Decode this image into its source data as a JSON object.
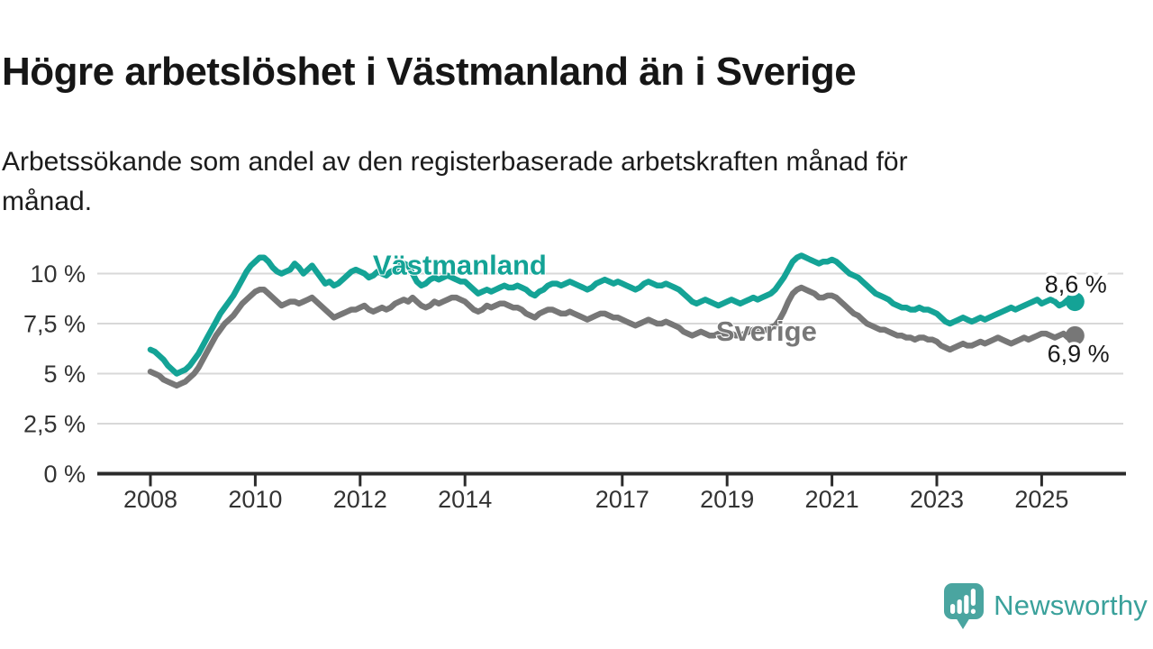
{
  "header": {
    "title": "Högre arbetslöshet i Västmanland än i Sverige",
    "subtitle_line1": "Arbetssökande som andel av den registerbaserade arbetskraften månad för",
    "subtitle_line2": "månad."
  },
  "footer": {
    "brand": "Newsworthy"
  },
  "colors": {
    "vastmanland": "#14a396",
    "sverige": "#777777",
    "grid": "#d8d8d8",
    "axis": "#2b2b2b",
    "logo_teal": "#4aa5a0"
  },
  "chart_data": {
    "type": "line",
    "title": "Högre arbetslöshet i Västmanland än i Sverige",
    "subtitle": "Arbetssökande som andel av den registerbaserade arbetskraften månad för månad.",
    "unit": "%",
    "x_start_year": 2008,
    "x_step_months": 1,
    "xlim": [
      2007.3,
      2026.1
    ],
    "ylim": [
      0,
      11.6
    ],
    "grid": "horizontal",
    "legend_position": "inline-labels",
    "yticks": [
      {
        "value": 0,
        "label": "0 %"
      },
      {
        "value": 2.5,
        "label": "2,5 %"
      },
      {
        "value": 5,
        "label": "5 %"
      },
      {
        "value": 7.5,
        "label": "7,5 %"
      },
      {
        "value": 10,
        "label": "10 %"
      }
    ],
    "xticks": [
      {
        "value": 2008,
        "label": "2008"
      },
      {
        "value": 2010,
        "label": "2010"
      },
      {
        "value": 2012,
        "label": "2012"
      },
      {
        "value": 2014,
        "label": "2014"
      },
      {
        "value": 2017,
        "label": "2017"
      },
      {
        "value": 2019,
        "label": "2019"
      },
      {
        "value": 2021,
        "label": "2021"
      },
      {
        "value": 2023,
        "label": "2023"
      },
      {
        "value": 2025,
        "label": "2025"
      }
    ],
    "series": [
      {
        "name": "Västmanland",
        "color": "#14a396",
        "name_label": {
          "text": "Västmanland",
          "x_year": 2013.9,
          "y_value": 10.4
        },
        "end_label": {
          "text": "8,6 %",
          "x_year": 2025.65,
          "y_value": 9.45
        },
        "end_value": 8.6,
        "values": [
          6.2,
          6.1,
          5.9,
          5.7,
          5.4,
          5.2,
          5.0,
          5.1,
          5.2,
          5.4,
          5.7,
          6.0,
          6.4,
          6.8,
          7.2,
          7.6,
          8.0,
          8.3,
          8.6,
          8.9,
          9.3,
          9.7,
          10.1,
          10.4,
          10.6,
          10.8,
          10.8,
          10.6,
          10.3,
          10.1,
          10.0,
          10.1,
          10.2,
          10.5,
          10.3,
          10.0,
          10.2,
          10.4,
          10.1,
          9.8,
          9.5,
          9.6,
          9.4,
          9.5,
          9.7,
          9.9,
          10.1,
          10.2,
          10.1,
          10.0,
          9.8,
          9.9,
          10.1,
          10.0,
          9.9,
          10.1,
          10.2,
          10.4,
          10.5,
          10.4,
          10.0,
          9.6,
          9.4,
          9.5,
          9.7,
          9.8,
          9.7,
          9.8,
          9.9,
          9.8,
          9.7,
          9.6,
          9.6,
          9.4,
          9.2,
          9.0,
          9.1,
          9.2,
          9.1,
          9.2,
          9.3,
          9.4,
          9.3,
          9.3,
          9.4,
          9.3,
          9.2,
          9.0,
          8.9,
          9.1,
          9.2,
          9.4,
          9.5,
          9.5,
          9.4,
          9.5,
          9.6,
          9.5,
          9.4,
          9.3,
          9.2,
          9.3,
          9.5,
          9.6,
          9.7,
          9.6,
          9.5,
          9.6,
          9.5,
          9.4,
          9.3,
          9.2,
          9.3,
          9.5,
          9.6,
          9.5,
          9.4,
          9.4,
          9.5,
          9.4,
          9.3,
          9.2,
          9.0,
          8.8,
          8.6,
          8.5,
          8.6,
          8.7,
          8.6,
          8.5,
          8.4,
          8.5,
          8.6,
          8.7,
          8.6,
          8.5,
          8.6,
          8.7,
          8.8,
          8.7,
          8.8,
          8.9,
          9.0,
          9.2,
          9.5,
          9.8,
          10.2,
          10.6,
          10.8,
          10.9,
          10.8,
          10.7,
          10.6,
          10.5,
          10.6,
          10.6,
          10.7,
          10.6,
          10.4,
          10.2,
          10.0,
          9.9,
          9.8,
          9.6,
          9.4,
          9.2,
          9.0,
          8.9,
          8.8,
          8.7,
          8.5,
          8.4,
          8.3,
          8.3,
          8.2,
          8.2,
          8.3,
          8.2,
          8.2,
          8.1,
          8.0,
          7.8,
          7.6,
          7.5,
          7.6,
          7.7,
          7.8,
          7.7,
          7.6,
          7.7,
          7.8,
          7.7,
          7.8,
          7.9,
          8.0,
          8.1,
          8.2,
          8.3,
          8.2,
          8.3,
          8.4,
          8.5,
          8.6,
          8.7,
          8.5,
          8.6,
          8.7,
          8.6,
          8.4,
          8.5,
          8.7,
          8.6
        ]
      },
      {
        "name": "Sverige",
        "color": "#777777",
        "name_label": {
          "text": "Sverige",
          "x_year": 2019.75,
          "y_value": 7.1
        },
        "end_label": {
          "text": "6,9 %",
          "x_year": 2025.7,
          "y_value": 6.0
        },
        "end_value": 6.9,
        "values": [
          5.1,
          5.0,
          4.9,
          4.7,
          4.6,
          4.5,
          4.4,
          4.5,
          4.6,
          4.8,
          5.0,
          5.3,
          5.7,
          6.1,
          6.5,
          6.9,
          7.2,
          7.5,
          7.7,
          7.9,
          8.2,
          8.5,
          8.7,
          8.9,
          9.1,
          9.2,
          9.2,
          9.0,
          8.8,
          8.6,
          8.4,
          8.5,
          8.6,
          8.6,
          8.5,
          8.6,
          8.7,
          8.8,
          8.6,
          8.4,
          8.2,
          8.0,
          7.8,
          7.9,
          8.0,
          8.1,
          8.2,
          8.2,
          8.3,
          8.4,
          8.2,
          8.1,
          8.2,
          8.3,
          8.2,
          8.3,
          8.5,
          8.6,
          8.7,
          8.6,
          8.8,
          8.6,
          8.4,
          8.3,
          8.4,
          8.6,
          8.5,
          8.6,
          8.7,
          8.8,
          8.8,
          8.7,
          8.6,
          8.4,
          8.2,
          8.1,
          8.2,
          8.4,
          8.3,
          8.4,
          8.5,
          8.5,
          8.4,
          8.3,
          8.3,
          8.2,
          8.0,
          7.9,
          7.8,
          8.0,
          8.1,
          8.2,
          8.2,
          8.1,
          8.0,
          8.0,
          8.1,
          8.0,
          7.9,
          7.8,
          7.7,
          7.8,
          7.9,
          8.0,
          8.0,
          7.9,
          7.8,
          7.8,
          7.7,
          7.6,
          7.5,
          7.4,
          7.5,
          7.6,
          7.7,
          7.6,
          7.5,
          7.5,
          7.6,
          7.5,
          7.4,
          7.3,
          7.1,
          7.0,
          6.9,
          7.0,
          7.1,
          7.0,
          6.9,
          6.9,
          7.0,
          7.0,
          7.0,
          7.0,
          6.9,
          6.9,
          7.0,
          7.1,
          7.2,
          7.1,
          7.1,
          7.2,
          7.3,
          7.4,
          7.7,
          8.1,
          8.6,
          9.0,
          9.2,
          9.3,
          9.2,
          9.1,
          9.0,
          8.8,
          8.8,
          8.9,
          8.9,
          8.8,
          8.6,
          8.4,
          8.2,
          8.0,
          7.9,
          7.7,
          7.5,
          7.4,
          7.3,
          7.2,
          7.2,
          7.1,
          7.0,
          6.9,
          6.9,
          6.8,
          6.8,
          6.7,
          6.8,
          6.8,
          6.7,
          6.7,
          6.6,
          6.4,
          6.3,
          6.2,
          6.3,
          6.4,
          6.5,
          6.4,
          6.4,
          6.5,
          6.6,
          6.5,
          6.6,
          6.7,
          6.8,
          6.7,
          6.6,
          6.5,
          6.6,
          6.7,
          6.8,
          6.7,
          6.8,
          6.9,
          7.0,
          7.0,
          6.9,
          6.8,
          6.9,
          7.0,
          6.8,
          6.9
        ]
      }
    ]
  }
}
